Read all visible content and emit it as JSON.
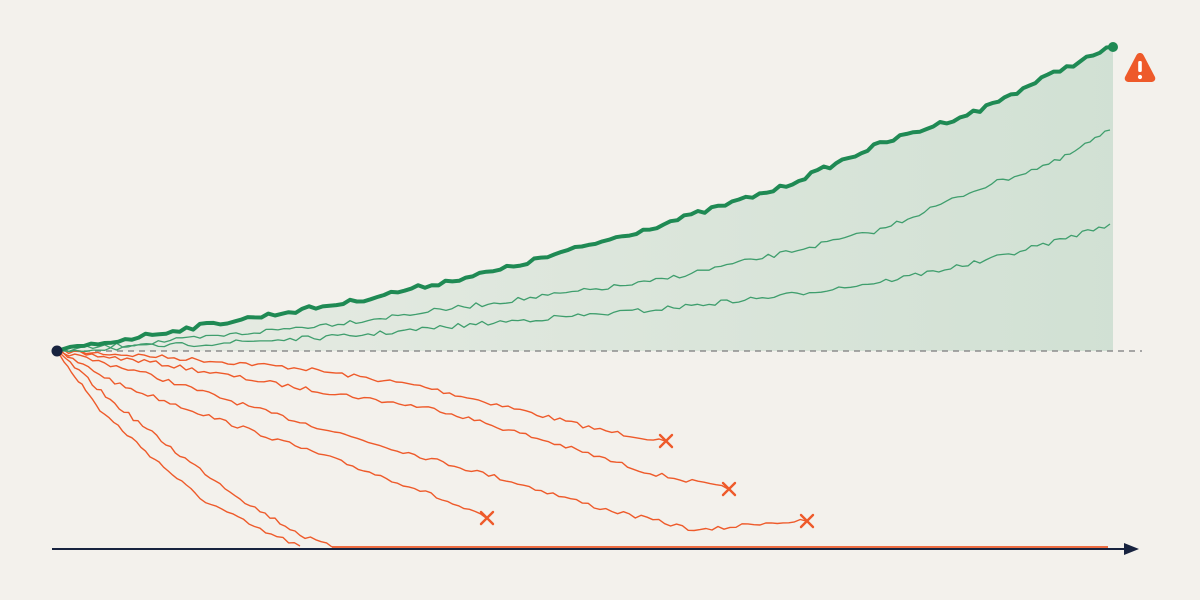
{
  "colors": {
    "background": "#f3f1ec",
    "winner": "#1f8a54",
    "winner_thin": "#3f9e6d",
    "loser": "#ee5a2a",
    "axis": "#17233f",
    "baseline": "#8d8d8d",
    "warning": "#ee5a2a",
    "origin": "#17233f"
  },
  "icons": {
    "warning": "warning-icon",
    "failure_marker": "x-mark-icon",
    "origin": "origin-dot-icon",
    "axis_head": "arrow-head-icon"
  },
  "diagram": {
    "winner_paths": 1,
    "surviving_paths": 2,
    "failed_paths": 4,
    "ruined_paths": 2
  }
}
